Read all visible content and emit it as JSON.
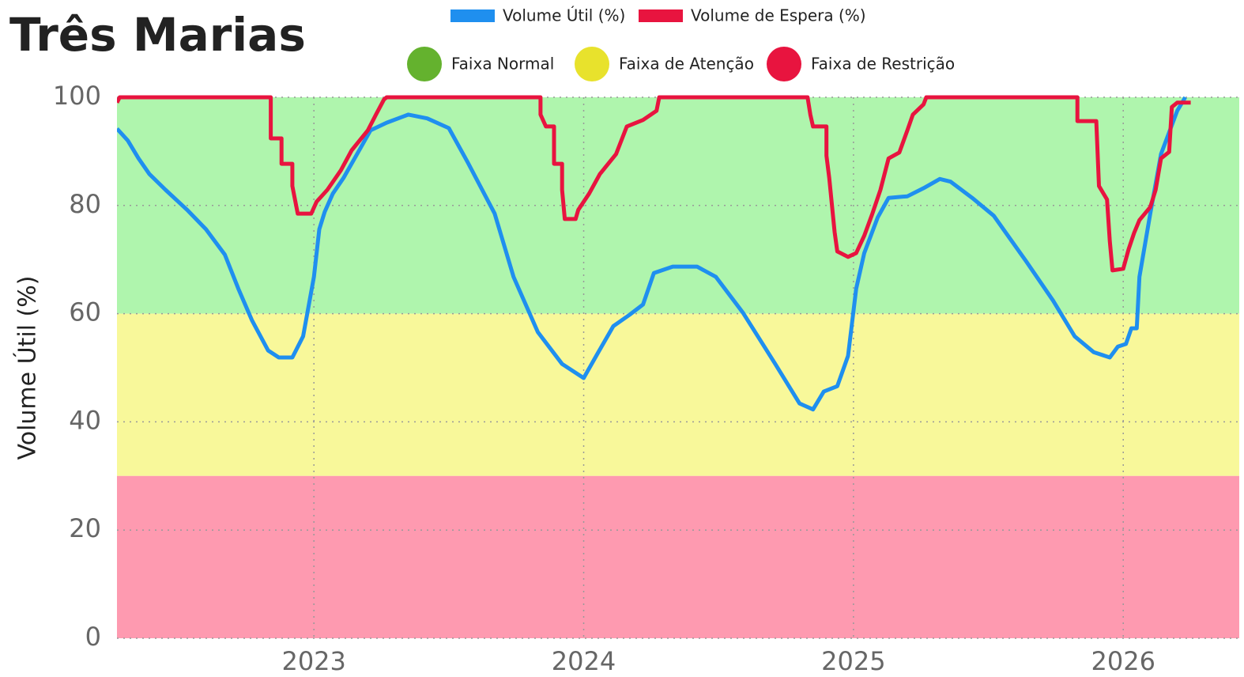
{
  "chart_data": {
    "type": "line",
    "title": "Três Marias",
    "y_label": "Volume Útil (%)",
    "xlim": [
      2022.27,
      2026.43
    ],
    "xticks": [
      2023,
      2024,
      2025,
      2026
    ],
    "ylim": [
      0,
      100
    ],
    "yticks": [
      0,
      20,
      40,
      60,
      80,
      100
    ],
    "grid": true,
    "bands": [
      {
        "name": "Faixa Normal",
        "color": "#aff5ad",
        "legend_color": "#64b22e",
        "range": [
          60,
          100
        ]
      },
      {
        "name": "Faixa de Atenção",
        "color": "#f8f89a",
        "legend_color": "#e8e22c",
        "range": [
          30,
          60
        ]
      },
      {
        "name": "Faixa de Restrição",
        "color": "#fe9ab0",
        "legend_color": "#e8143f",
        "range": [
          0,
          30
        ]
      }
    ],
    "series": [
      {
        "name": "Volume Útil (%)",
        "color": "#1f8fef",
        "x": [
          2022.27,
          2022.31,
          2022.35,
          2022.39,
          2022.45,
          2022.53,
          2022.6,
          2022.67,
          2022.72,
          2022.77,
          2022.83,
          2022.87,
          2022.92,
          2022.96,
          2023.0,
          2023.02,
          2023.04,
          2023.07,
          2023.11,
          2023.16,
          2023.21,
          2023.27,
          2023.35,
          2023.42,
          2023.5,
          2023.57,
          2023.67,
          2023.74,
          2023.83,
          2023.92,
          2024.0,
          2024.05,
          2024.11,
          2024.17,
          2024.22,
          2024.26,
          2024.33,
          2024.42,
          2024.49,
          2024.59,
          2024.71,
          2024.8,
          2024.85,
          2024.89,
          2024.94,
          2024.98,
          2025.01,
          2025.04,
          2025.09,
          2025.13,
          2025.2,
          2025.26,
          2025.32,
          2025.36,
          2025.44,
          2025.52,
          2025.64,
          2025.74,
          2025.82,
          2025.89,
          2025.95,
          2025.98,
          2026.01,
          2026.03,
          2026.05,
          2026.06,
          2026.1,
          2026.14,
          2026.2,
          2026.23
        ],
        "values": [
          94.2,
          92,
          88.7,
          85.8,
          82.9,
          79.2,
          75.6,
          70.9,
          64.6,
          58.8,
          53.2,
          51.9,
          51.9,
          55.8,
          66.8,
          75.6,
          78.8,
          82.2,
          85.1,
          89.5,
          93.9,
          95.3,
          96.8,
          96.1,
          94.3,
          88,
          78.5,
          66.8,
          56.6,
          50.7,
          48.1,
          52.5,
          57.7,
          59.8,
          61.7,
          67.5,
          68.7,
          68.7,
          66.8,
          60.2,
          50.7,
          43.4,
          42.3,
          45.6,
          46.6,
          52.2,
          64.6,
          71.2,
          77.8,
          81.4,
          81.7,
          83.2,
          84.9,
          84.4,
          81.4,
          78.1,
          69.7,
          62.4,
          55.8,
          52.9,
          51.9,
          53.9,
          54.4,
          57.3,
          57.3,
          66.8,
          78.5,
          89.5,
          97.5,
          100
        ]
      },
      {
        "name": "Volume de Espera (%)",
        "color": "#e8143f",
        "x": [
          2022.27,
          2022.28,
          2022.84,
          2022.84,
          2022.88,
          2022.88,
          2022.92,
          2022.92,
          2022.94,
          2022.99,
          2023.01,
          2023.05,
          2023.1,
          2023.14,
          2023.2,
          2023.23,
          2023.26,
          2023.27,
          2023.84,
          2023.84,
          2023.86,
          2023.89,
          2023.89,
          2023.92,
          2023.92,
          2023.93,
          2023.97,
          2023.98,
          2024.02,
          2024.06,
          2024.12,
          2024.16,
          2024.22,
          2024.27,
          2024.28,
          2024.83,
          2024.84,
          2024.85,
          2024.9,
          2024.9,
          2024.91,
          2024.93,
          2024.94,
          2024.98,
          2025.01,
          2025.04,
          2025.07,
          2025.1,
          2025.13,
          2025.17,
          2025.2,
          2025.22,
          2025.26,
          2025.27,
          2025.83,
          2025.83,
          2025.9,
          2025.91,
          2025.94,
          2025.95,
          2025.96,
          2026.0,
          2026.02,
          2026.04,
          2026.06,
          2026.1,
          2026.12,
          2026.14,
          2026.17,
          2026.18,
          2026.2,
          2026.25
        ],
        "values": [
          99,
          100,
          100,
          92.4,
          92.4,
          87.7,
          87.7,
          83.6,
          78.5,
          78.5,
          80.7,
          82.9,
          86.5,
          90.2,
          93.9,
          96.8,
          99.6,
          100,
          100,
          96.8,
          94.6,
          94.6,
          87.7,
          87.7,
          82.9,
          77.5,
          77.5,
          79.2,
          82.2,
          85.8,
          89.5,
          94.6,
          95.8,
          97.5,
          100,
          100,
          96.8,
          94.6,
          94.6,
          89.2,
          85.1,
          75.1,
          71.5,
          70.5,
          71.2,
          74.4,
          78.5,
          82.9,
          88.7,
          89.8,
          93.9,
          96.8,
          98.7,
          100,
          100,
          95.6,
          95.6,
          83.6,
          81.1,
          73.4,
          68,
          68.3,
          71.9,
          74.9,
          77.3,
          79.7,
          82.9,
          88.7,
          89.9,
          98.2,
          99,
          99
        ]
      }
    ]
  }
}
